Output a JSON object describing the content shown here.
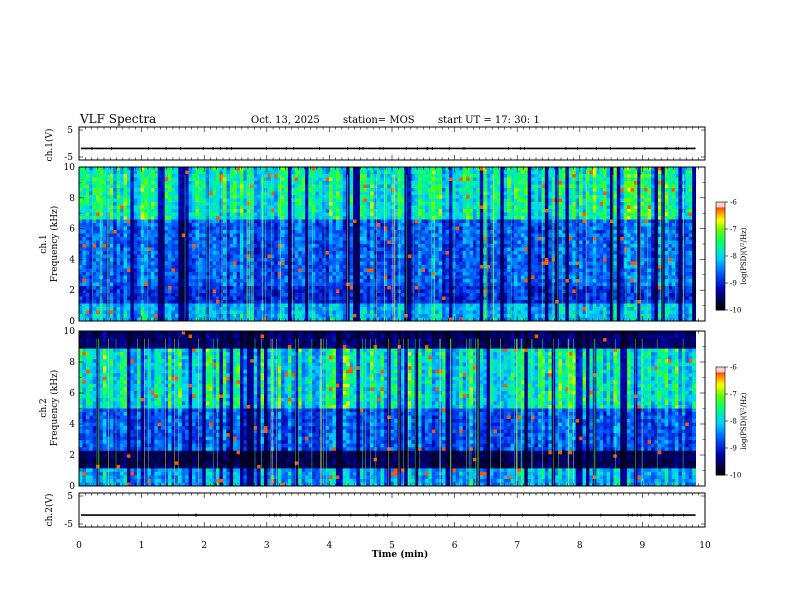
{
  "header": {
    "title": "VLF Spectra",
    "date": "Oct. 13, 2025",
    "station": "station= MOS",
    "start_ut": "start  UT =   17: 30: 1"
  },
  "chart_data": [
    {
      "type": "line",
      "name": "ch1-waveform",
      "ylabel": "ch.1(V)",
      "ylim": [
        -5,
        5
      ],
      "yticks": [
        "5",
        "-5"
      ],
      "xlim": [
        0,
        10
      ],
      "approx_level": -1.5
    },
    {
      "type": "heatmap",
      "name": "ch1-spectrogram",
      "ylabel": "ch.1\nFrequency (kHz)",
      "ylabel_lines": [
        "ch.1",
        "Frequency (kHz)"
      ],
      "ylim": [
        0,
        10
      ],
      "yticks": [
        "0",
        "2",
        "4",
        "6",
        "8",
        "10"
      ],
      "xlim": [
        0,
        10
      ],
      "data_end_min": 9.85,
      "band_kHz": [
        6.5,
        9.5
      ],
      "colorbar": {
        "label": "log(PSD)(V²/Hz)",
        "range": [
          -10,
          -6
        ],
        "ticks": [
          "-6",
          "-7",
          "-8",
          "-9",
          "-10"
        ]
      }
    },
    {
      "type": "heatmap",
      "name": "ch2-spectrogram",
      "ylabel": "ch.2\nFrequency (kHz)",
      "ylabel_lines": [
        "ch.2",
        "Frequency (kHz)"
      ],
      "ylim": [
        0,
        10
      ],
      "yticks": [
        "0",
        "2",
        "4",
        "6",
        "8",
        "10"
      ],
      "xlim": [
        0,
        10
      ],
      "data_end_min": 9.85,
      "band_kHz": [
        5.0,
        8.5
      ],
      "colorbar": {
        "label": "log(PSD)(V²/Hz)",
        "range": [
          -10,
          -6
        ],
        "ticks": [
          "-6",
          "-7",
          "-8",
          "-9",
          "-10"
        ]
      }
    },
    {
      "type": "line",
      "name": "ch2-waveform",
      "ylabel": "ch.2(V)",
      "ylim": [
        -5,
        5
      ],
      "yticks": [
        "5",
        "-5"
      ],
      "xlim": [
        0,
        10
      ],
      "approx_level": -1.5
    }
  ],
  "xaxis": {
    "label": "Time (min)",
    "ticks": [
      "0",
      "1",
      "2",
      "3",
      "4",
      "5",
      "6",
      "7",
      "8",
      "9",
      "10"
    ]
  },
  "colors": {
    "background": "#ffffff",
    "frame": "#000000",
    "colormap": [
      "#000000",
      "#0000aa",
      "#0050ff",
      "#00d0ff",
      "#00ff80",
      "#60ff00",
      "#ffff00",
      "#ff8000",
      "#ff0000",
      "#ffffff"
    ]
  }
}
